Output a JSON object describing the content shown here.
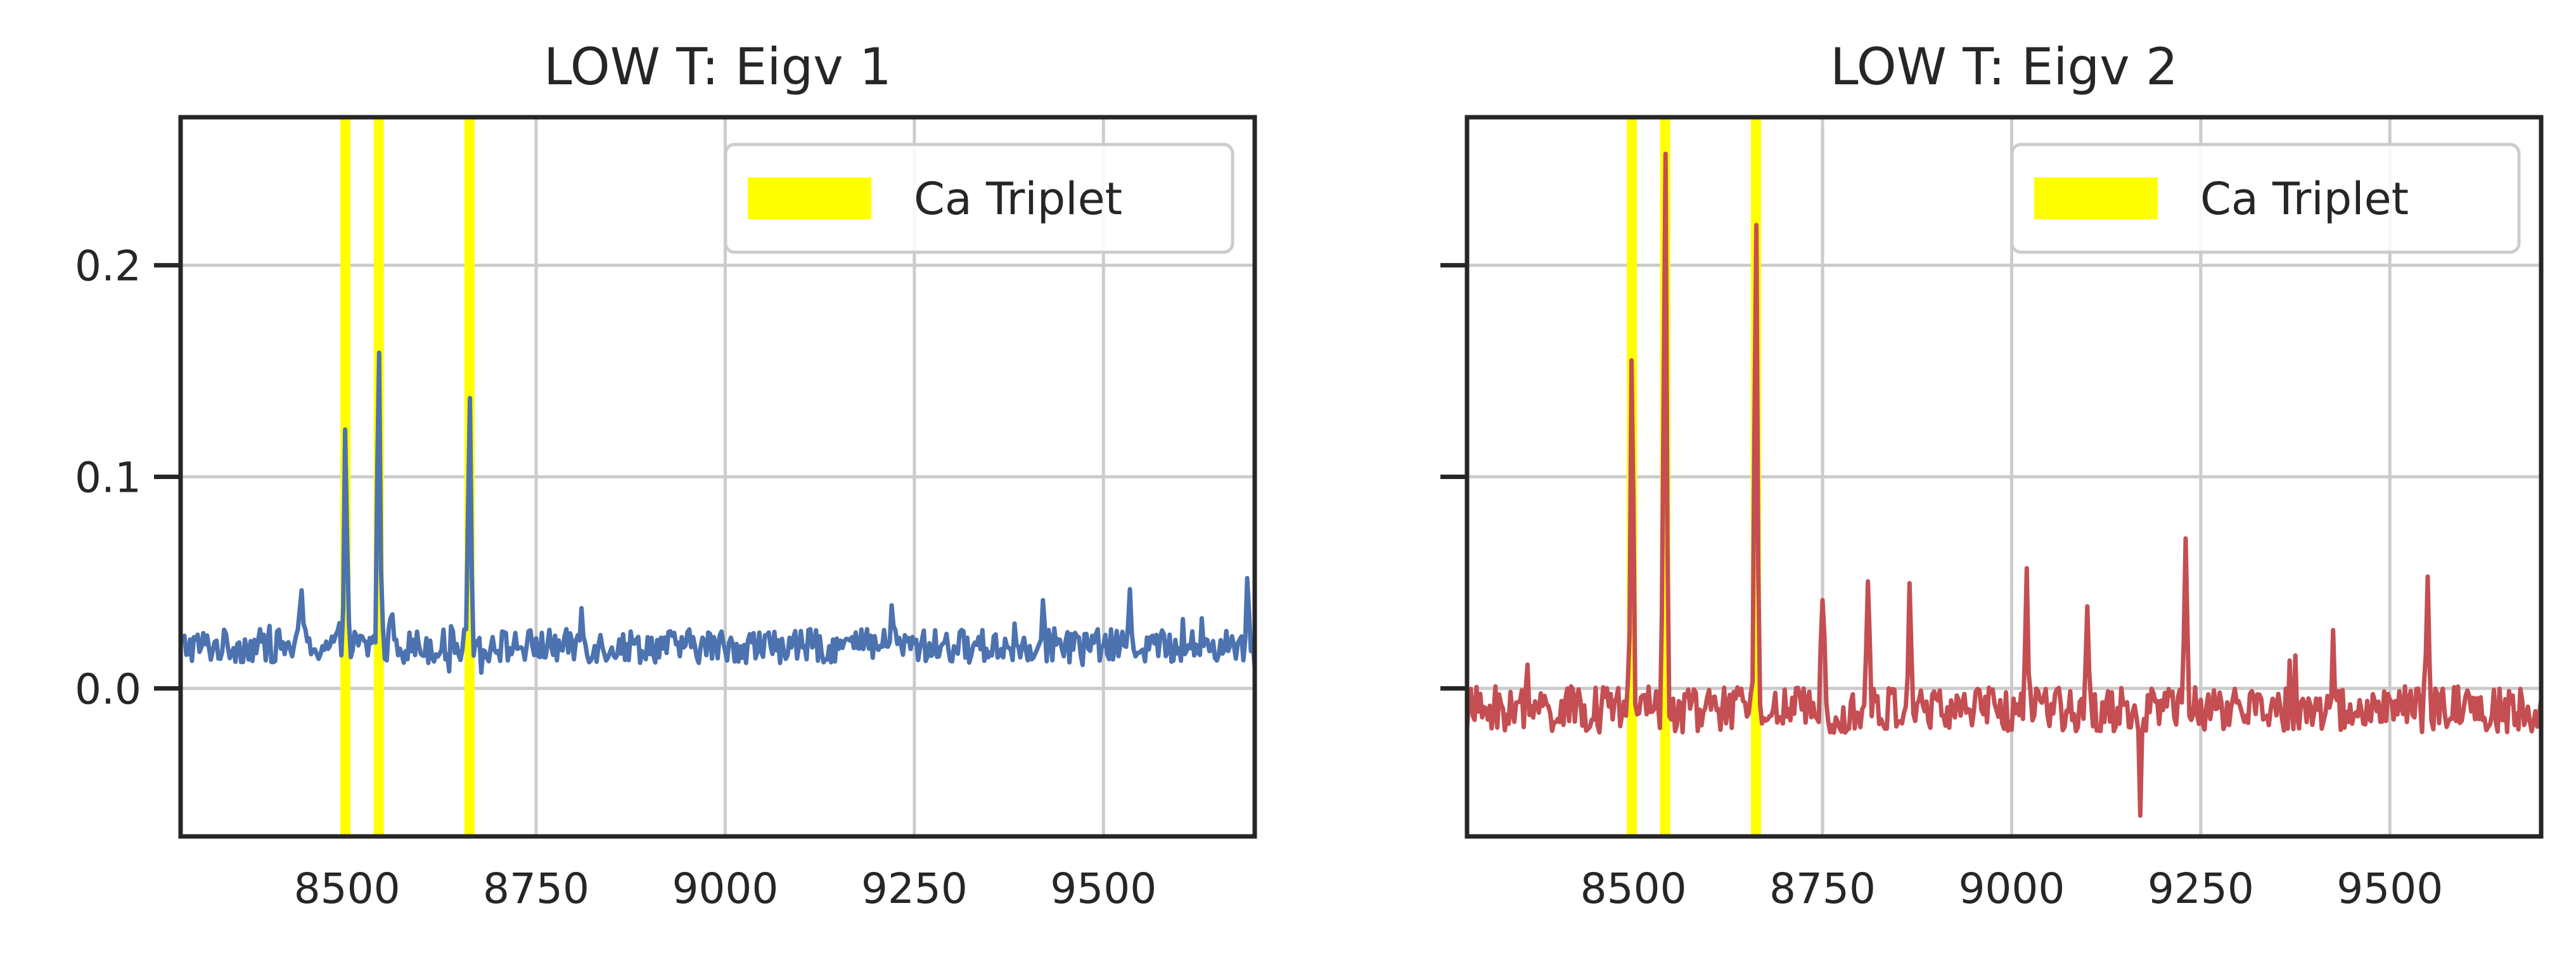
{
  "colors": {
    "band": "#ffff00",
    "eigv1": "#4c72b0",
    "eigv2": "#c44e52",
    "grid": "#cccccc",
    "axes": "#262626"
  },
  "chart_data": [
    {
      "type": "line",
      "title": "LOW T:  Eigv 1",
      "xlim": [
        8280,
        9700
      ],
      "ylim": [
        -0.07,
        0.27
      ],
      "xticks": [
        8500,
        8750,
        9000,
        9250,
        9500
      ],
      "xtick_labels": [
        "8500",
        "8750",
        "9000",
        "9250",
        "9500"
      ],
      "yticks": [
        0.0,
        0.1,
        0.2
      ],
      "ytick_labels": [
        "0.0",
        "0.1",
        "0.2"
      ],
      "grid": true,
      "legend": {
        "position": "top-right",
        "entries": [
          {
            "label": "Ca Triplet",
            "color": "#ffff00",
            "kind": "patch"
          }
        ]
      },
      "bands": [
        8498,
        8542,
        8662
      ],
      "series": [
        {
          "color": "#4c72b0",
          "baseline": 0.02,
          "noise": 0.008,
          "peaks": [
            [
              8498,
              0.119
            ],
            [
              8542,
              0.167
            ],
            [
              8662,
              0.149
            ],
            [
              8440,
              0.049
            ],
            [
              8560,
              0.04
            ],
            [
              8810,
              0.037
            ],
            [
              9220,
              0.042
            ],
            [
              9420,
              0.045
            ],
            [
              9535,
              0.05
            ],
            [
              9690,
              0.048
            ]
          ]
        }
      ]
    },
    {
      "type": "line",
      "title": "LOW T:  Eigv 2",
      "xlim": [
        8280,
        9700
      ],
      "ylim": [
        -0.07,
        0.27
      ],
      "xticks": [
        8500,
        8750,
        9000,
        9250,
        9500
      ],
      "xtick_labels": [
        "8500",
        "8750",
        "9000",
        "9250",
        "9500"
      ],
      "yticks": [
        0.0,
        0.1,
        0.2
      ],
      "ytick_labels": [
        "",
        "",
        ""
      ],
      "grid": true,
      "legend": {
        "position": "top-right",
        "entries": [
          {
            "label": "Ca Triplet",
            "color": "#ffff00",
            "kind": "patch"
          }
        ]
      },
      "bands": [
        8498,
        8542,
        8662
      ],
      "series": [
        {
          "color": "#c44e52",
          "baseline": -0.01,
          "noise": 0.011,
          "peaks": [
            [
              8498,
              0.16
            ],
            [
              8542,
              0.255
            ],
            [
              8662,
              0.232
            ],
            [
              8750,
              0.05
            ],
            [
              8810,
              0.055
            ],
            [
              8865,
              0.054
            ],
            [
              9020,
              0.055
            ],
            [
              9100,
              0.04
            ],
            [
              9230,
              0.068
            ],
            [
              9425,
              0.02
            ],
            [
              9550,
              0.053
            ],
            [
              9170,
              -0.05
            ]
          ]
        }
      ]
    }
  ]
}
